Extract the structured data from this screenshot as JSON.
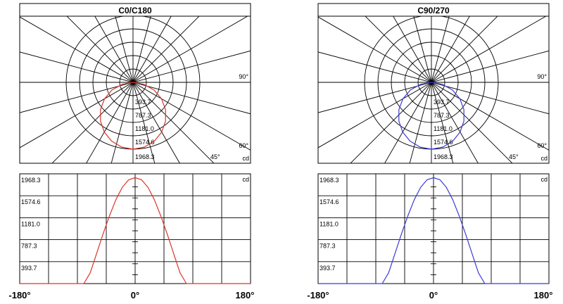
{
  "chart_data": [
    {
      "type": "polar",
      "title": "C0/C180",
      "color": "#d9352b",
      "radial_ticks": [
        "393.7",
        "787.3",
        "1181.0",
        "1574.6",
        "1968.3"
      ],
      "angle_labels": [
        "90°",
        "60°",
        "45°"
      ],
      "unit": "cd",
      "rmax": 1968.3,
      "angles_deg": [
        0,
        10,
        20,
        30,
        40,
        50,
        60,
        70,
        80,
        90
      ],
      "intensity": [
        1968.3,
        1935,
        1840,
        1690,
        1490,
        1250,
        970,
        660,
        320,
        0
      ]
    },
    {
      "type": "polar",
      "title": "C90/270",
      "color": "#3b3bd4",
      "radial_ticks": [
        "393.7",
        "787.3",
        "1181.0",
        "1574.6",
        "1968.3"
      ],
      "angle_labels": [
        "90°",
        "60°",
        "45°"
      ],
      "unit": "cd",
      "rmax": 1968.3,
      "angles_deg": [
        0,
        10,
        20,
        30,
        40,
        50,
        60,
        70,
        80,
        90
      ],
      "intensity": [
        1968.3,
        1935,
        1840,
        1690,
        1490,
        1250,
        970,
        660,
        320,
        0
      ]
    },
    {
      "type": "line",
      "color": "#d9352b",
      "ylabels": [
        "1968.3",
        "1574.6",
        "1181.0",
        "787.3",
        "393.7"
      ],
      "unit": "cd",
      "xlabels": [
        "-180°",
        "0°",
        "180°"
      ],
      "xlim": [
        -180,
        180
      ],
      "ylim": [
        0,
        1968.3
      ],
      "x": [
        -180,
        -80,
        -70,
        -60,
        -50,
        -40,
        -30,
        -20,
        -10,
        0,
        10,
        20,
        30,
        40,
        50,
        60,
        70,
        80,
        180
      ],
      "y": [
        0,
        0,
        200,
        560,
        920,
        1260,
        1560,
        1790,
        1930,
        1968.3,
        1930,
        1790,
        1560,
        1260,
        920,
        560,
        200,
        0,
        0
      ]
    },
    {
      "type": "line",
      "color": "#3b3bd4",
      "ylabels": [
        "1968.3",
        "1574.6",
        "1181.0",
        "787.3",
        "393.7"
      ],
      "unit": "cd",
      "xlabels": [
        "-180°",
        "0°",
        "180°"
      ],
      "xlim": [
        -180,
        180
      ],
      "ylim": [
        0,
        1968.3
      ],
      "x": [
        -180,
        -80,
        -70,
        -60,
        -50,
        -40,
        -30,
        -20,
        -10,
        0,
        10,
        20,
        30,
        40,
        50,
        60,
        70,
        80,
        180
      ],
      "y": [
        0,
        0,
        200,
        560,
        920,
        1260,
        1560,
        1790,
        1930,
        1968.3,
        1930,
        1790,
        1560,
        1260,
        920,
        560,
        200,
        0,
        0
      ]
    }
  ]
}
